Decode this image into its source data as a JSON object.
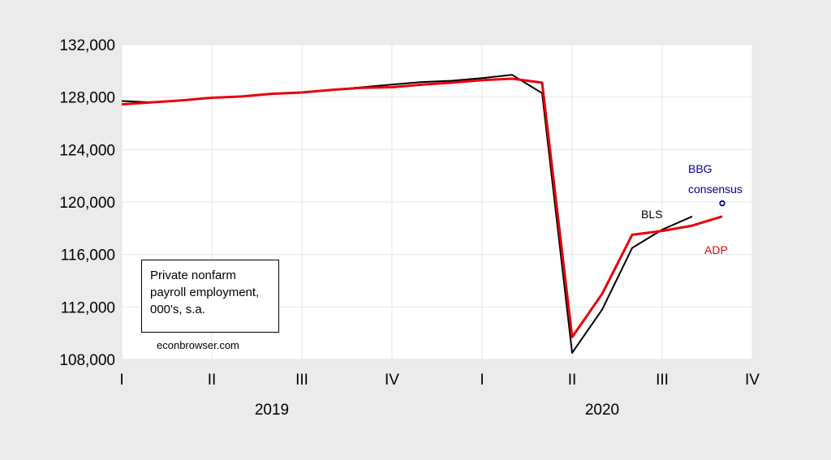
{
  "chart_data": {
    "type": "line",
    "ylim": [
      108000,
      132000
    ],
    "y_ticks": [
      "132,000",
      "128,000",
      "124,000",
      "120,000",
      "116,000",
      "112,000",
      "108,000"
    ],
    "y_tick_values": [
      132000,
      128000,
      124000,
      120000,
      116000,
      112000,
      108000
    ],
    "x_months": [
      "2019-01",
      "2019-02",
      "2019-03",
      "2019-04",
      "2019-05",
      "2019-06",
      "2019-07",
      "2019-08",
      "2019-09",
      "2019-10",
      "2019-11",
      "2019-12",
      "2020-01",
      "2020-02",
      "2020-03",
      "2020-04",
      "2020-05",
      "2020-06",
      "2020-07",
      "2020-08",
      "2020-09",
      "2020-10"
    ],
    "quarter_ticks": [
      "I",
      "II",
      "III",
      "IV",
      "I",
      "II",
      "III",
      "IV"
    ],
    "quarter_tick_months": [
      "2019-01",
      "2019-04",
      "2019-07",
      "2019-10",
      "2020-01",
      "2020-04",
      "2020-07",
      "2020-10"
    ],
    "years": [
      {
        "label": "2019",
        "month": "2019-06"
      },
      {
        "label": "2020",
        "month": "2020-05"
      }
    ],
    "grid": true,
    "series": [
      {
        "name": "BLS",
        "color": "#000000",
        "points": [
          {
            "x": "2019-01",
            "y": 127700
          },
          {
            "x": "2019-02",
            "y": 127600
          },
          {
            "x": "2019-03",
            "y": 127750
          },
          {
            "x": "2019-04",
            "y": 127950
          },
          {
            "x": "2019-05",
            "y": 128050
          },
          {
            "x": "2019-06",
            "y": 128250
          },
          {
            "x": "2019-07",
            "y": 128350
          },
          {
            "x": "2019-08",
            "y": 128550
          },
          {
            "x": "2019-09",
            "y": 128750
          },
          {
            "x": "2019-10",
            "y": 128950
          },
          {
            "x": "2019-11",
            "y": 129150
          },
          {
            "x": "2019-12",
            "y": 129250
          },
          {
            "x": "2020-01",
            "y": 129450
          },
          {
            "x": "2020-02",
            "y": 129700
          },
          {
            "x": "2020-03",
            "y": 128300
          },
          {
            "x": "2020-04",
            "y": 108500
          },
          {
            "x": "2020-05",
            "y": 111800
          },
          {
            "x": "2020-06",
            "y": 116500
          },
          {
            "x": "2020-07",
            "y": 117900
          },
          {
            "x": "2020-08",
            "y": 118900
          }
        ]
      },
      {
        "name": "ADP",
        "color": "#e8000b",
        "points": [
          {
            "x": "2019-01",
            "y": 127450
          },
          {
            "x": "2019-02",
            "y": 127600
          },
          {
            "x": "2019-03",
            "y": 127750
          },
          {
            "x": "2019-04",
            "y": 127950
          },
          {
            "x": "2019-05",
            "y": 128050
          },
          {
            "x": "2019-06",
            "y": 128250
          },
          {
            "x": "2019-07",
            "y": 128350
          },
          {
            "x": "2019-08",
            "y": 128550
          },
          {
            "x": "2019-09",
            "y": 128700
          },
          {
            "x": "2019-10",
            "y": 128750
          },
          {
            "x": "2019-11",
            "y": 128950
          },
          {
            "x": "2019-12",
            "y": 129100
          },
          {
            "x": "2020-01",
            "y": 129300
          },
          {
            "x": "2020-02",
            "y": 129400
          },
          {
            "x": "2020-03",
            "y": 129100
          },
          {
            "x": "2020-04",
            "y": 109700
          },
          {
            "x": "2020-05",
            "y": 113000
          },
          {
            "x": "2020-06",
            "y": 117500
          },
          {
            "x": "2020-07",
            "y": 117800
          },
          {
            "x": "2020-08",
            "y": 118200
          },
          {
            "x": "2020-09",
            "y": 118900
          }
        ]
      }
    ],
    "consensus_point": {
      "label": "BBG consensus",
      "x": "2020-09",
      "y": 119900,
      "color": "#00008b"
    },
    "annotations": [
      {
        "key": "bbg1",
        "text": "BBG",
        "color": "#00008b"
      },
      {
        "key": "bbg2",
        "text": "consensus",
        "color": "#00008b"
      },
      {
        "key": "bls",
        "text": "BLS",
        "color": "#000000"
      },
      {
        "key": "adp",
        "text": "ADP",
        "color": "#e8000b"
      }
    ]
  },
  "info_box": {
    "lines": [
      "Private nonfarm",
      "payroll employment,",
      "000's, s.a."
    ]
  },
  "source": "econbrowser.com"
}
